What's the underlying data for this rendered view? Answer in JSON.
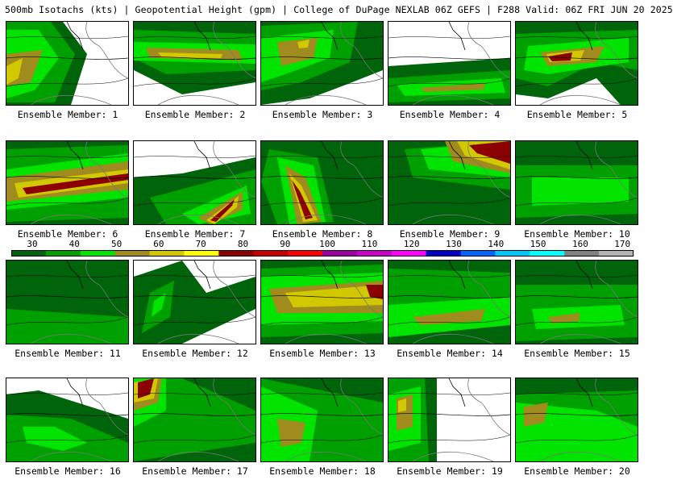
{
  "title": "500mb Isotachs (kts) | Geopotential Height (gpm) | College of DuPage NEXLAB   06Z GEFS | F288 Valid: 06Z FRI JUN 20 2025",
  "legend": {
    "labels": [
      "30",
      "40",
      "50",
      "60",
      "70",
      "80",
      "90",
      "100",
      "110",
      "120",
      "130",
      "140",
      "150",
      "160",
      "170"
    ],
    "colors": [
      "#00640a",
      "#00a000",
      "#00e400",
      "#a08c1e",
      "#d2c800",
      "#ffff00",
      "#8c0000",
      "#c80000",
      "#ff0000",
      "#a000a0",
      "#c800c8",
      "#ff00ff",
      "#0000c8",
      "#0064ff",
      "#00c8ff",
      "#00ffff",
      "#808080",
      "#b4b4b4"
    ]
  },
  "caption_prefix": "Ensemble Member: ",
  "members": [
    {
      "label": "Ensemble Member: 1",
      "peak_kts": 70
    },
    {
      "label": "Ensemble Member: 2",
      "peak_kts": 70
    },
    {
      "label": "Ensemble Member: 3",
      "peak_kts": 70
    },
    {
      "label": "Ensemble Member: 4",
      "peak_kts": 60
    },
    {
      "label": "Ensemble Member: 5",
      "peak_kts": 80
    },
    {
      "label": "Ensemble Member: 6",
      "peak_kts": 80
    },
    {
      "label": "Ensemble Member: 7",
      "peak_kts": 80
    },
    {
      "label": "Ensemble Member: 8",
      "peak_kts": 80
    },
    {
      "label": "Ensemble Member: 9",
      "peak_kts": 80
    },
    {
      "label": "Ensemble Member: 10",
      "peak_kts": 50
    },
    {
      "label": "Ensemble Member: 11",
      "peak_kts": 40
    },
    {
      "label": "Ensemble Member: 12",
      "peak_kts": 50
    },
    {
      "label": "Ensemble Member: 13",
      "peak_kts": 80
    },
    {
      "label": "Ensemble Member: 14",
      "peak_kts": 60
    },
    {
      "label": "Ensemble Member: 15",
      "peak_kts": 60
    },
    {
      "label": "Ensemble Member: 16",
      "peak_kts": 50
    },
    {
      "label": "Ensemble Member: 17",
      "peak_kts": 80
    },
    {
      "label": "Ensemble Member: 18",
      "peak_kts": 60
    },
    {
      "label": "Ensemble Member: 19",
      "peak_kts": 70
    },
    {
      "label": "Ensemble Member: 20",
      "peak_kts": 60
    }
  ]
}
